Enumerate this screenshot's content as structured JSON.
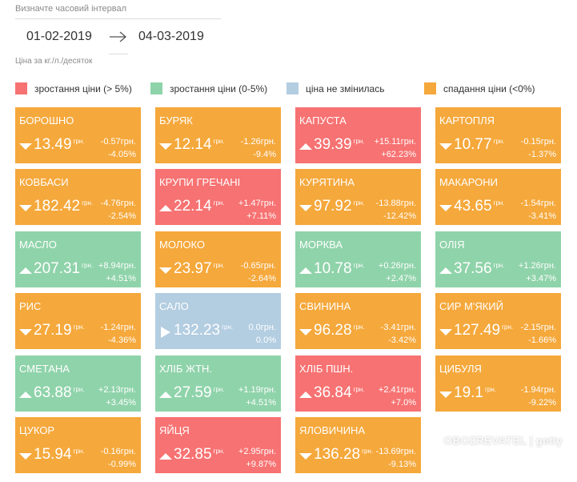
{
  "header": {
    "title": "Визначте часовий інтервал",
    "date_from": "01-02-2019",
    "date_to": "04-03-2019",
    "note": "Ціна за кг./л./десяток"
  },
  "legend": [
    {
      "label": "зростання ціни (> 5%)",
      "color": "#f77272"
    },
    {
      "label": "зростання ціни (0-5%)",
      "color": "#8fd3aa"
    },
    {
      "label": "ціна не змінилась",
      "color": "#b3cde1"
    },
    {
      "label": "спадання ціни (<0%)",
      "color": "#f5a83b"
    }
  ],
  "unit": "грн.",
  "cards": [
    {
      "name": "БОРОШНО",
      "price": "13.49",
      "change": "-0.57грн.",
      "percent": "-4.05%",
      "color": "#f5a83b"
    },
    {
      "name": "БУРЯК",
      "price": "12.14",
      "change": "-1.26грн.",
      "percent": "-9.4%",
      "color": "#f5a83b"
    },
    {
      "name": "КАПУСТА",
      "price": "39.39",
      "change": "+15.11грн.",
      "percent": "+62.23%",
      "color": "#f77272"
    },
    {
      "name": "КАРТОПЛЯ",
      "price": "10.77",
      "change": "-0.15грн.",
      "percent": "-1.37%",
      "color": "#f5a83b"
    },
    {
      "name": "КОВБАСИ",
      "price": "182.42",
      "change": "-4.76грн.",
      "percent": "-2.54%",
      "color": "#f5a83b"
    },
    {
      "name": "КРУПИ ГРЕЧАНІ",
      "price": "22.14",
      "change": "+1.47грн.",
      "percent": "+7.11%",
      "color": "#f77272"
    },
    {
      "name": "КУРЯТИНА",
      "price": "97.92",
      "change": "-13.88грн.",
      "percent": "-12.42%",
      "color": "#f5a83b"
    },
    {
      "name": "МАКАРОНИ",
      "price": "43.65",
      "change": "-1.54грн.",
      "percent": "-3.41%",
      "color": "#f5a83b"
    },
    {
      "name": "МАСЛО",
      "price": "207.31",
      "change": "+8.94грн.",
      "percent": "+4.51%",
      "color": "#8fd3aa"
    },
    {
      "name": "МОЛОКО",
      "price": "23.97",
      "change": "-0.65грн.",
      "percent": "-2.64%",
      "color": "#f5a83b"
    },
    {
      "name": "МОРКВА",
      "price": "10.78",
      "change": "+0.26грн.",
      "percent": "+2.47%",
      "color": "#8fd3aa"
    },
    {
      "name": "ОЛІЯ",
      "price": "37.56",
      "change": "+1.26грн.",
      "percent": "+3.47%",
      "color": "#8fd3aa"
    },
    {
      "name": "РИС",
      "price": "27.19",
      "change": "-1.24грн.",
      "percent": "-4.36%",
      "color": "#f5a83b"
    },
    {
      "name": "САЛО",
      "price": "132.23",
      "change": "0.0грн.",
      "percent": "0.0%",
      "color": "#b3cde1"
    },
    {
      "name": "СВИНИНА",
      "price": "96.28",
      "change": "-3.41грн.",
      "percent": "-3.42%",
      "color": "#f5a83b"
    },
    {
      "name": "СИР М'ЯКИЙ",
      "price": "127.49",
      "change": "-2.15грн.",
      "percent": "-1.66%",
      "color": "#f5a83b"
    },
    {
      "name": "СМЕТАНА",
      "price": "63.88",
      "change": "+2.13грн.",
      "percent": "+3.45%",
      "color": "#8fd3aa"
    },
    {
      "name": "ХЛІБ ЖТН.",
      "price": "27.59",
      "change": "+1.19грн.",
      "percent": "+4.51%",
      "color": "#8fd3aa"
    },
    {
      "name": "ХЛІБ ПШН.",
      "price": "36.84",
      "change": "+2.41грн.",
      "percent": "+7.0%",
      "color": "#f77272"
    },
    {
      "name": "ЦИБУЛЯ",
      "price": "19.1",
      "change": "-1.94грн.",
      "percent": "-9.22%",
      "color": "#f5a83b"
    },
    {
      "name": "ЦУКОР",
      "price": "15.94",
      "change": "-0.16грн.",
      "percent": "-0.99%",
      "color": "#f5a83b"
    },
    {
      "name": "ЯЙЦЯ",
      "price": "32.85",
      "change": "+2.95грн.",
      "percent": "+9.87%",
      "color": "#f77272"
    },
    {
      "name": "ЯЛОВИЧИНА",
      "price": "136.28",
      "change": "-13.69грн.",
      "percent": "-9.13%",
      "color": "#f5a83b"
    }
  ],
  "watermark": "OBOZREVATEL | getty"
}
